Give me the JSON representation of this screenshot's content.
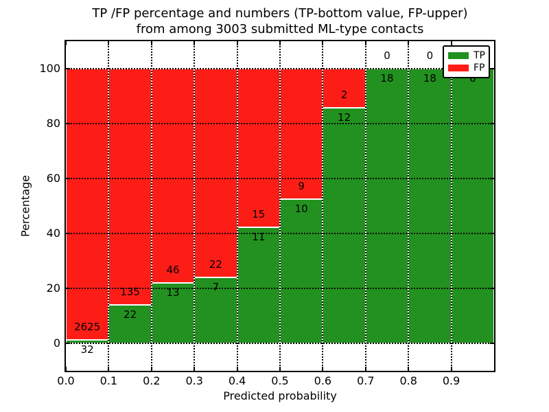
{
  "figure": {
    "title_lines": [
      "TP /FP percentage and numbers (TP-bottom value, FP-upper)",
      "from among 3003 submitted ML-type contacts"
    ]
  },
  "chart_data": {
    "type": "bar",
    "stacked": true,
    "normalized_to_percent": true,
    "title": "TP /FP percentage and numbers (TP-bottom value, FP-upper)\nfrom among 3003 submitted ML-type contacts",
    "total_submitted_contacts": 3003,
    "xlabel": "Predicted probability",
    "ylabel": "Percentage",
    "xlim": [
      0.0,
      1.0
    ],
    "ylim": [
      -10,
      110
    ],
    "grid": "dotted",
    "legend_position": "upper right",
    "xtick_labels": [
      "0.0",
      "0.1",
      "0.2",
      "0.3",
      "0.4",
      "0.5",
      "0.6",
      "0.7",
      "0.8",
      "0.9"
    ],
    "ytick_labels": [
      "0",
      "20",
      "40",
      "60",
      "80",
      "100"
    ],
    "yticks": [
      0,
      20,
      40,
      60,
      80,
      100
    ],
    "bin_width": 0.1,
    "bin_starts": [
      0.0,
      0.1,
      0.2,
      0.3,
      0.4,
      0.5,
      0.6,
      0.7,
      0.8,
      0.9
    ],
    "series": [
      {
        "name": "TP",
        "color": "#22911f",
        "counts": [
          32,
          22,
          13,
          7,
          11,
          10,
          12,
          18,
          18,
          6
        ],
        "percent": [
          1.2,
          14.0,
          22.0,
          24.1,
          42.3,
          52.6,
          85.7,
          100.0,
          100.0,
          100.0
        ]
      },
      {
        "name": "FP",
        "color": "#fd1d17",
        "counts": [
          2625,
          135,
          46,
          22,
          15,
          9,
          2,
          0,
          0,
          0
        ],
        "percent": [
          98.8,
          86.0,
          78.0,
          75.9,
          57.7,
          47.4,
          14.3,
          0.0,
          0.0,
          0.0
        ]
      }
    ],
    "colors": {
      "tp": "#22911f",
      "fp": "#fd1d17",
      "background": "#ffffff",
      "grid": "#000000"
    }
  }
}
